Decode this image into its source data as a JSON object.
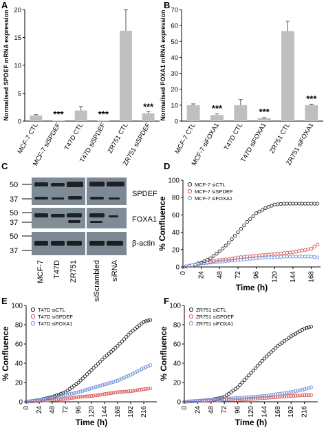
{
  "panels": {
    "A": "A",
    "B": "B",
    "C": "C",
    "D": "D",
    "E": "E",
    "F": "F"
  },
  "chart_data": [
    {
      "id": "A",
      "type": "bar",
      "ylabel": "Normalised SPDEF mRNA expression",
      "ylim": [
        0,
        20
      ],
      "yticks": [
        0,
        5,
        10,
        15,
        20
      ],
      "categories": [
        "MCF-7 CTL",
        "MCF-7 siSPDEF",
        "T47D CTL",
        "T47D siSPDEF",
        "ZR751 CTL",
        "ZR751 siSPDEF"
      ],
      "values": [
        1.0,
        0.05,
        1.9,
        0.05,
        16.2,
        1.4
      ],
      "errors": [
        0.15,
        0,
        0.7,
        0,
        3.8,
        0.3
      ],
      "annotations": [
        "",
        "***",
        "",
        "***",
        "",
        "***"
      ],
      "color": "#bfbfbf"
    },
    {
      "id": "B",
      "type": "bar",
      "ylabel": "Normalised FOXA1 mRNA expression",
      "ylim": [
        0,
        70
      ],
      "yticks": [
        0,
        10,
        20,
        30,
        40,
        50,
        60,
        70
      ],
      "categories": [
        "MCF-7 CTL",
        "MCF-7 siFOXA1",
        "T47D CTL",
        "T47D siFOXA1",
        "ZR751 CTL",
        "ZR751 siFOXA1"
      ],
      "values": [
        10.0,
        3.8,
        10.0,
        1.8,
        56.5,
        10.0
      ],
      "errors": [
        0.8,
        0.8,
        3.5,
        0.3,
        6.2,
        0.6
      ],
      "annotations": [
        "",
        "***",
        "",
        "***",
        "",
        "***"
      ],
      "color": "#bfbfbf"
    },
    {
      "id": "D",
      "type": "scatter",
      "xlabel": "Time (h)",
      "ylabel": "% Confluence",
      "xlim": [
        0,
        180
      ],
      "ylim": [
        0,
        100
      ],
      "xticks": [
        0,
        24,
        48,
        72,
        96,
        120,
        144,
        168
      ],
      "yticks": [
        0,
        20,
        40,
        60,
        80,
        100
      ],
      "legend": "top-left",
      "series": [
        {
          "name": "MCF-7 siCTL",
          "color": "#222222",
          "points": [
            [
              0,
              0
            ],
            [
              12,
              2
            ],
            [
              24,
              5
            ],
            [
              36,
              10
            ],
            [
              48,
              18
            ],
            [
              60,
              28
            ],
            [
              72,
              40
            ],
            [
              84,
              52
            ],
            [
              96,
              62
            ],
            [
              108,
              68
            ],
            [
              120,
              72
            ],
            [
              132,
              73
            ],
            [
              144,
              73
            ],
            [
              156,
              73
            ],
            [
              168,
              73
            ],
            [
              176,
              73
            ]
          ]
        },
        {
          "name": "MCF-7 siSPDEF",
          "color": "#d9534f",
          "points": [
            [
              0,
              0
            ],
            [
              12,
              2
            ],
            [
              24,
              4
            ],
            [
              36,
              6
            ],
            [
              48,
              8
            ],
            [
              60,
              9
            ],
            [
              72,
              11
            ],
            [
              84,
              12
            ],
            [
              96,
              13
            ],
            [
              108,
              14
            ],
            [
              120,
              15
            ],
            [
              132,
              16
            ],
            [
              144,
              17
            ],
            [
              156,
              19
            ],
            [
              168,
              21
            ],
            [
              176,
              26
            ]
          ]
        },
        {
          "name": "MCF-7 siFOXA1",
          "color": "#6f8fd9",
          "points": [
            [
              0,
              0
            ],
            [
              12,
              2
            ],
            [
              24,
              4
            ],
            [
              36,
              5
            ],
            [
              48,
              6
            ],
            [
              60,
              7
            ],
            [
              72,
              8
            ],
            [
              84,
              9
            ],
            [
              96,
              10
            ],
            [
              108,
              11
            ],
            [
              120,
              11
            ],
            [
              132,
              12
            ],
            [
              144,
              12
            ],
            [
              156,
              12
            ],
            [
              168,
              12
            ],
            [
              176,
              11
            ]
          ]
        }
      ]
    },
    {
      "id": "E",
      "type": "scatter",
      "xlabel": "Time (h)",
      "ylabel": "% Confluence",
      "xlim": [
        0,
        240
      ],
      "ylim": [
        0,
        100
      ],
      "xticks": [
        0,
        24,
        48,
        72,
        96,
        120,
        144,
        168,
        192,
        216
      ],
      "yticks": [
        0,
        20,
        40,
        60,
        80,
        100
      ],
      "legend": "top-left",
      "series": [
        {
          "name": "T47D siCTL",
          "color": "#222222",
          "points": [
            [
              0,
              0
            ],
            [
              24,
              2
            ],
            [
              48,
              5
            ],
            [
              72,
              10
            ],
            [
              96,
              20
            ],
            [
              120,
              33
            ],
            [
              144,
              46
            ],
            [
              168,
              58
            ],
            [
              192,
              72
            ],
            [
              216,
              83
            ],
            [
              228,
              85
            ]
          ]
        },
        {
          "name": "T47D siSPDEF",
          "color": "#d9534f",
          "points": [
            [
              0,
              0
            ],
            [
              24,
              1
            ],
            [
              48,
              2
            ],
            [
              72,
              3
            ],
            [
              96,
              5
            ],
            [
              120,
              6
            ],
            [
              144,
              8
            ],
            [
              168,
              10
            ],
            [
              192,
              11
            ],
            [
              216,
              13
            ],
            [
              228,
              14
            ]
          ]
        },
        {
          "name": "T47D siFOXA1",
          "color": "#6f8fd9",
          "points": [
            [
              0,
              0
            ],
            [
              24,
              2
            ],
            [
              48,
              4
            ],
            [
              72,
              7
            ],
            [
              96,
              10
            ],
            [
              120,
              14
            ],
            [
              144,
              18
            ],
            [
              168,
              22
            ],
            [
              192,
              28
            ],
            [
              216,
              35
            ],
            [
              228,
              38
            ]
          ]
        }
      ]
    },
    {
      "id": "F",
      "type": "scatter",
      "xlabel": "Time (h)",
      "ylabel": "% Confluence",
      "xlim": [
        0,
        240
      ],
      "ylim": [
        0,
        100
      ],
      "xticks": [
        0,
        24,
        48,
        72,
        96,
        120,
        144,
        168,
        192,
        216
      ],
      "yticks": [
        0,
        20,
        40,
        60,
        80,
        100
      ],
      "legend": "top-left",
      "series": [
        {
          "name": "ZR751 siCTL",
          "color": "#222222",
          "points": [
            [
              0,
              0
            ],
            [
              24,
              1
            ],
            [
              48,
              2
            ],
            [
              72,
              5
            ],
            [
              96,
              15
            ],
            [
              120,
              30
            ],
            [
              144,
              45
            ],
            [
              168,
              58
            ],
            [
              192,
              68
            ],
            [
              216,
              76
            ],
            [
              228,
              78
            ]
          ]
        },
        {
          "name": "ZR751 siSPDEF",
          "color": "#d9534f",
          "points": [
            [
              0,
              0
            ],
            [
              24,
              1
            ],
            [
              48,
              1
            ],
            [
              72,
              2
            ],
            [
              96,
              2
            ],
            [
              120,
              3
            ],
            [
              144,
              4
            ],
            [
              168,
              5
            ],
            [
              192,
              6
            ],
            [
              216,
              7
            ],
            [
              228,
              7
            ]
          ]
        },
        {
          "name": "ZR751 siFOXA1",
          "color": "#6f8fd9",
          "points": [
            [
              0,
              0
            ],
            [
              24,
              1
            ],
            [
              48,
              2
            ],
            [
              72,
              3
            ],
            [
              96,
              4
            ],
            [
              120,
              5
            ],
            [
              144,
              6
            ],
            [
              168,
              8
            ],
            [
              192,
              10
            ],
            [
              216,
              13
            ],
            [
              228,
              15
            ]
          ]
        }
      ]
    }
  ],
  "blot": {
    "bands": [
      "SPDEF",
      "FOXA1",
      "β-actin"
    ],
    "markers": [
      [
        "50",
        "37"
      ],
      [
        "50",
        "37"
      ],
      [
        "50",
        "37"
      ]
    ],
    "lanes": [
      "MCF-7",
      "T47D",
      "ZR751",
      "siScrambled",
      "siRNA"
    ]
  }
}
